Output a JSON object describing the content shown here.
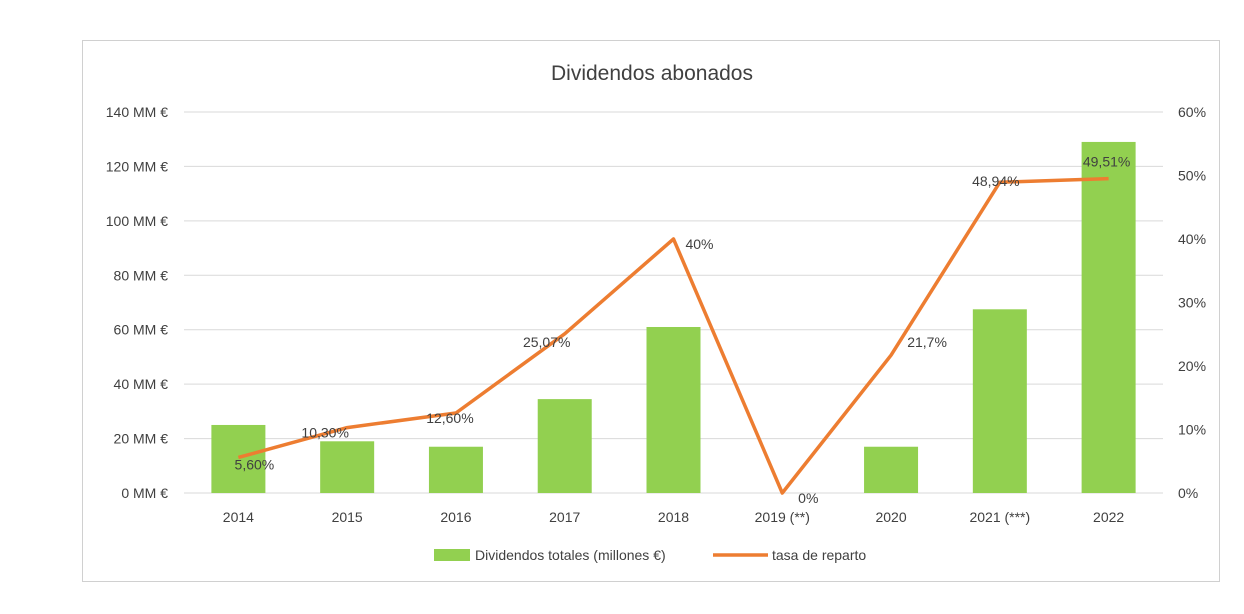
{
  "chart_data": {
    "type": "bar",
    "title": "Dividendos abonados",
    "categories": [
      "2014",
      "2015",
      "2016",
      "2017",
      "2018",
      "2019 (**)",
      "2020",
      "2021 (***)",
      "2022"
    ],
    "series": [
      {
        "name": "Dividendos totales (millones €)",
        "type": "bar",
        "axis": "left",
        "color": "#92d050",
        "values": [
          25,
          19,
          17,
          34.5,
          61,
          0,
          17,
          67.5,
          129
        ]
      },
      {
        "name": "tasa de reparto",
        "type": "line",
        "axis": "right",
        "color": "#ed7d31",
        "values": [
          5.6,
          10.3,
          12.6,
          25.07,
          40,
          0,
          21.7,
          48.94,
          49.51
        ],
        "data_labels": [
          "5,60%",
          "10,30%",
          "12,60%",
          "25,07%",
          "40%",
          "0%",
          "21,7%",
          "48,94%",
          "49,51%"
        ]
      }
    ],
    "y_left": {
      "ylim": [
        0,
        140
      ],
      "ticks": [
        0,
        20,
        40,
        60,
        80,
        100,
        120,
        140
      ],
      "tick_labels": [
        "0 MM €",
        "20 MM €",
        "40 MM €",
        "60 MM €",
        "80 MM €",
        "100 MM €",
        "120 MM €",
        "140 MM €"
      ]
    },
    "y_right": {
      "ylim": [
        0,
        60
      ],
      "ticks": [
        0,
        10,
        20,
        30,
        40,
        50,
        60
      ],
      "tick_labels": [
        "0%",
        "10%",
        "20%",
        "30%",
        "40%",
        "50%",
        "60%"
      ]
    },
    "grid": true,
    "legend_position": "bottom",
    "gridline_color": "#d9d9d9"
  }
}
